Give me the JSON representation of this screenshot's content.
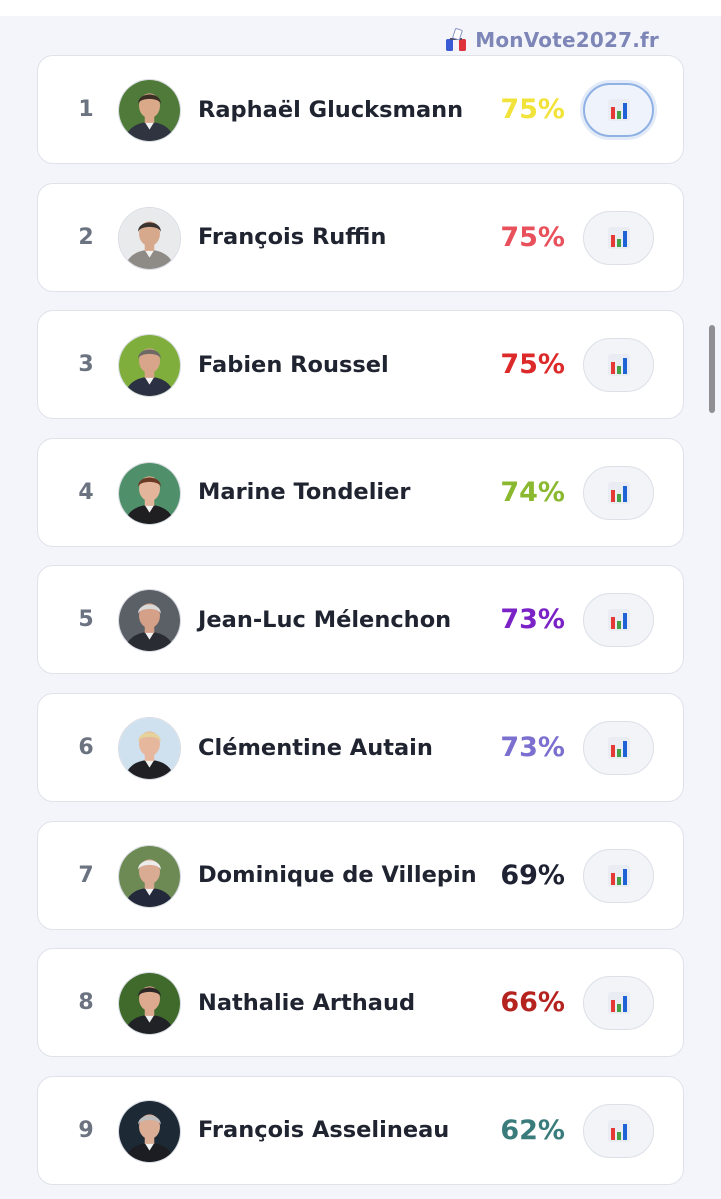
{
  "brand": {
    "text": "MonVote2027.fr",
    "icon": "ballot-box-icon"
  },
  "stats_icon": "bar-chart-icon",
  "candidates": [
    {
      "rank": "1",
      "name": "Raphaël Glucksmann",
      "score": "75%",
      "score_color": "#f2e33a",
      "active": true,
      "avatar_bg": "#4f7a3a",
      "avatar_skin": "#d9a98a",
      "avatar_hair": "#3b2e25",
      "avatar_suit": "#2f3440"
    },
    {
      "rank": "2",
      "name": "François Ruffin",
      "score": "75%",
      "score_color": "#e8505b",
      "active": false,
      "avatar_bg": "#e9eaec",
      "avatar_skin": "#d6a98c",
      "avatar_hair": "#3a3330",
      "avatar_suit": "#8e8a86"
    },
    {
      "rank": "3",
      "name": "Fabien Roussel",
      "score": "75%",
      "score_color": "#dc2a2a",
      "active": false,
      "avatar_bg": "#7fae3d",
      "avatar_skin": "#d8a58a",
      "avatar_hair": "#6d6a66",
      "avatar_suit": "#2b3142"
    },
    {
      "rank": "4",
      "name": "Marine Tondelier",
      "score": "74%",
      "score_color": "#8ab82e",
      "active": false,
      "avatar_bg": "#4f8f6a",
      "avatar_skin": "#e3b59a",
      "avatar_hair": "#6b3a24",
      "avatar_suit": "#1f1f22"
    },
    {
      "rank": "5",
      "name": "Jean-Luc Mélenchon",
      "score": "73%",
      "score_color": "#7b22c6",
      "active": false,
      "avatar_bg": "#5b5f66",
      "avatar_skin": "#d4a088",
      "avatar_hair": "#d9d9d9",
      "avatar_suit": "#2a2c34"
    },
    {
      "rank": "6",
      "name": "Clémentine Autain",
      "score": "73%",
      "score_color": "#7b6fd0",
      "active": false,
      "avatar_bg": "#cfe1ee",
      "avatar_skin": "#e6b79d",
      "avatar_hair": "#e6d29b",
      "avatar_suit": "#1f1f24"
    },
    {
      "rank": "7",
      "name": "Dominique de Villepin",
      "score": "69%",
      "score_color": "#1e2233",
      "active": false,
      "avatar_bg": "#6d8a55",
      "avatar_skin": "#d9ab92",
      "avatar_hair": "#ececec",
      "avatar_suit": "#23283a"
    },
    {
      "rank": "8",
      "name": "Nathalie Arthaud",
      "score": "66%",
      "score_color": "#b5231f",
      "active": false,
      "avatar_bg": "#3f6a2c",
      "avatar_skin": "#deaa8f",
      "avatar_hair": "#2c2624",
      "avatar_suit": "#202226"
    },
    {
      "rank": "9",
      "name": "François Asselineau",
      "score": "62%",
      "score_color": "#3a7c7c",
      "active": false,
      "avatar_bg": "#1d2a36",
      "avatar_skin": "#dbad94",
      "avatar_hair": "#bdbdbd",
      "avatar_suit": "#1c1d22"
    }
  ]
}
